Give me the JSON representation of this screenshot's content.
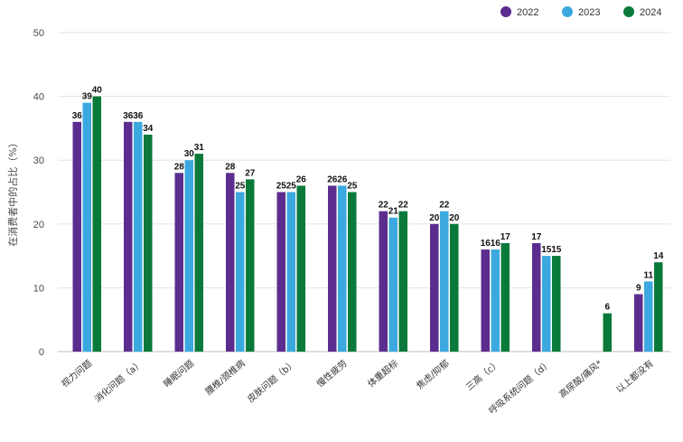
{
  "chart_data": {
    "type": "bar",
    "title": "",
    "xlabel": "",
    "ylabel": "在消费者中的占比（%）",
    "ylim": [
      0,
      50
    ],
    "yticks": [
      0,
      10,
      20,
      30,
      40,
      50
    ],
    "grid": true,
    "legend_position": "top-right",
    "categories": [
      "视力问题",
      "消化问题（a）",
      "睡眠问题",
      "腰椎/颈椎病",
      "皮肤问题（b）",
      "慢性疲劳",
      "体重超标",
      "焦虑/抑郁",
      "三高（c）",
      "呼吸系统问题（d）",
      "高尿酸/痛风*",
      "以上都没有"
    ],
    "series": [
      {
        "name": "2022",
        "color": "#5b2d8e",
        "values": [
          36,
          36,
          28,
          28,
          25,
          26,
          22,
          20,
          16,
          17,
          null,
          9
        ]
      },
      {
        "name": "2023",
        "color": "#3ba9df",
        "values": [
          39,
          36,
          30,
          25,
          25,
          26,
          21,
          22,
          16,
          15,
          null,
          11
        ]
      },
      {
        "name": "2024",
        "color": "#0a7a3a",
        "values": [
          40,
          34,
          31,
          27,
          26,
          25,
          22,
          20,
          17,
          15,
          6,
          14
        ]
      }
    ]
  }
}
